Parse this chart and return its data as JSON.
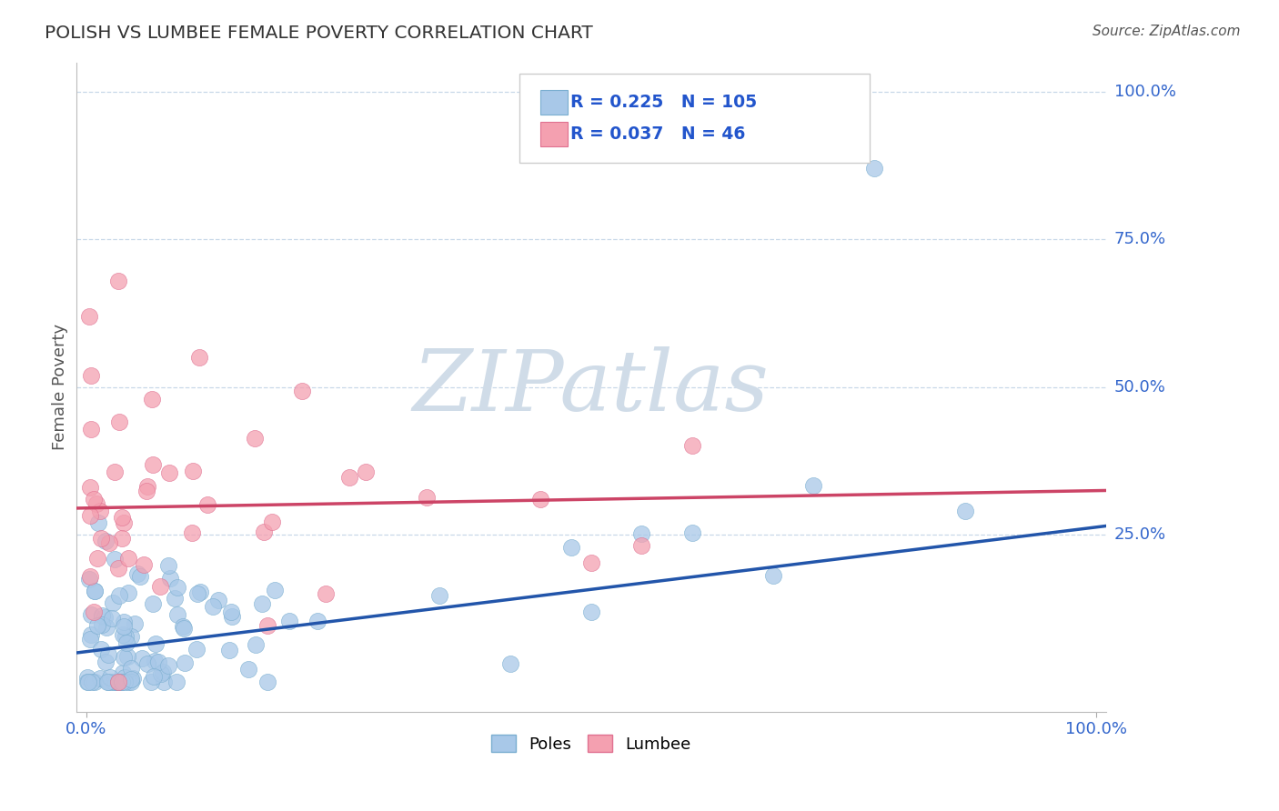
{
  "title": "POLISH VS LUMBEE FEMALE POVERTY CORRELATION CHART",
  "source": "Source: ZipAtlas.com",
  "ylabel": "Female Poverty",
  "poles_R": 0.225,
  "poles_N": 105,
  "lumbee_R": 0.037,
  "lumbee_N": 46,
  "poles_color": "#a8c8e8",
  "poles_edge_color": "#7aaed0",
  "lumbee_color": "#f4a0b0",
  "lumbee_edge_color": "#e07090",
  "poles_line_color": "#2255aa",
  "lumbee_line_color": "#cc4466",
  "legend_text_color": "#2255cc",
  "title_color": "#333333",
  "axis_label_color": "#3366cc",
  "source_color": "#555555",
  "grid_color": "#c8d8e8",
  "background_color": "#ffffff",
  "watermark_color": "#d0dce8",
  "ylim_min": -0.05,
  "ylim_max": 1.05,
  "xlim_min": -0.01,
  "xlim_max": 1.01,
  "ytick_vals": [
    0.25,
    0.5,
    0.75,
    1.0
  ],
  "ytick_labels": [
    "25.0%",
    "50.0%",
    "75.0%",
    "100.0%"
  ],
  "poles_line_x0": 0.0,
  "poles_line_y0": 0.05,
  "poles_line_x1": 1.0,
  "poles_line_y1": 0.265,
  "lumbee_line_x0": 0.0,
  "lumbee_line_y0": 0.295,
  "lumbee_line_x1": 1.0,
  "lumbee_line_y1": 0.325
}
